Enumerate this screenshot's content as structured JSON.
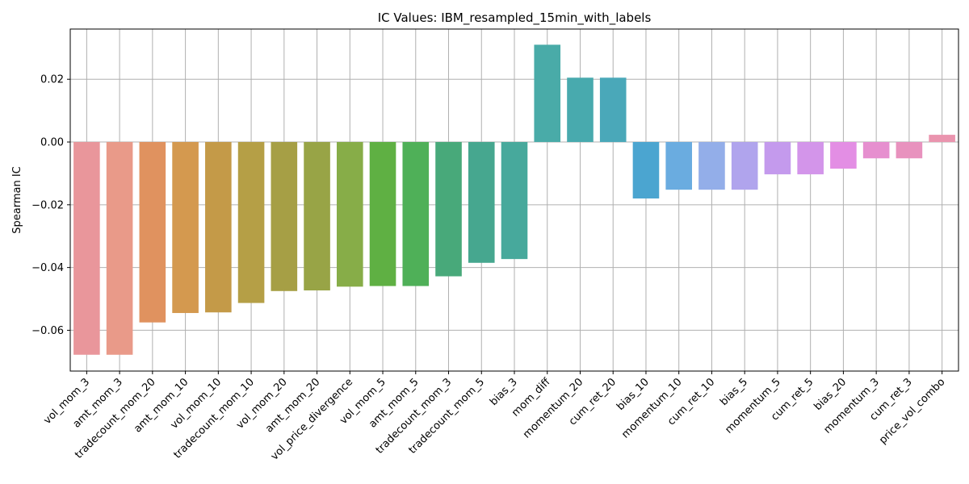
{
  "chart_data": {
    "type": "bar",
    "title": "IC Values: IBM_resampled_15min_with_labels",
    "xlabel": "",
    "ylabel": "Spearman IC",
    "ylim": [
      -0.073,
      0.036
    ],
    "yticks": [
      -0.06,
      -0.04,
      -0.02,
      0.0,
      0.02
    ],
    "ytick_labels": [
      "−0.06",
      "−0.04",
      "−0.02",
      "0.00",
      "0.02"
    ],
    "grid": true,
    "legend": "none",
    "categories": [
      "vol_mom_3",
      "amt_mom_3",
      "tradecount_mom_20",
      "amt_mom_10",
      "vol_mom_10",
      "tradecount_mom_10",
      "vol_mom_20",
      "amt_mom_20",
      "vol_price_divergence",
      "vol_mom_5",
      "amt_mom_5",
      "tradecount_mom_3",
      "tradecount_mom_5",
      "bias_3",
      "mom_diff",
      "momentum_20",
      "cum_ret_20",
      "bias_10",
      "momentum_10",
      "cum_ret_10",
      "bias_5",
      "momentum_5",
      "cum_ret_5",
      "bias_20",
      "momentum_3",
      "cum_ret_3",
      "price_vol_combo"
    ],
    "values": [
      -0.0678,
      -0.0678,
      -0.0575,
      -0.0545,
      -0.0543,
      -0.0513,
      -0.0475,
      -0.0473,
      -0.0461,
      -0.0459,
      -0.0459,
      -0.0428,
      -0.0385,
      -0.0373,
      0.031,
      0.0205,
      0.0205,
      -0.018,
      -0.0152,
      -0.0152,
      -0.0152,
      -0.0103,
      -0.0103,
      -0.0085,
      -0.0052,
      -0.0052,
      0.0023
    ],
    "colors": [
      "#e9969b",
      "#e99a89",
      "#e0925f",
      "#d4994f",
      "#c49a48",
      "#b59f46",
      "#a69f45",
      "#98a446",
      "#87ad48",
      "#5fb043",
      "#4fb058",
      "#48a97a",
      "#46a78f",
      "#47a99c",
      "#49aba8",
      "#48aaae",
      "#4aa8b9",
      "#4ba5d0",
      "#6aace0",
      "#93aee9",
      "#b0a4ed",
      "#c49aed",
      "#d395ea",
      "#e38ee4",
      "#e68fcf",
      "#e892be",
      "#ea94ae"
    ]
  }
}
